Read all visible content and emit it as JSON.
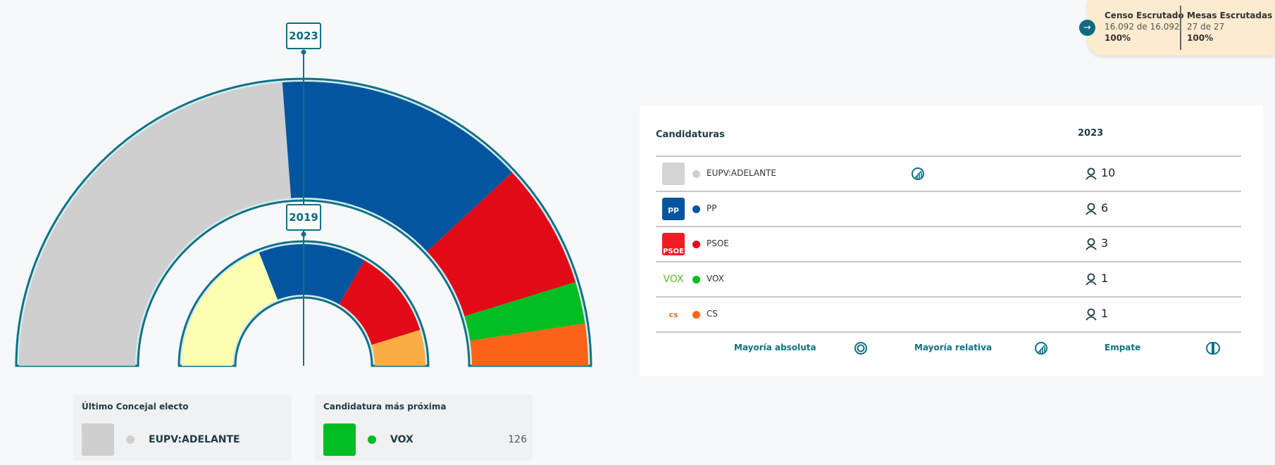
{
  "chart_data": {
    "type": "hemicycle",
    "rings": [
      {
        "year": "2023",
        "seats": [
          {
            "party": "EUPV:ADELANTE",
            "value": 10,
            "color": "#cfcfcf"
          },
          {
            "party": "PP",
            "value": 6,
            "color": "#0455a0"
          },
          {
            "party": "PSOE",
            "value": 3,
            "color": "#e20a17"
          },
          {
            "party": "VOX",
            "value": 1,
            "color": "#00bd21"
          },
          {
            "party": "CS",
            "value": 1,
            "color": "#fb6319"
          }
        ]
      },
      {
        "year": "2019",
        "seats": [
          {
            "value": 8,
            "color": "#fefeb0"
          },
          {
            "value": 6,
            "color": "#0455a0"
          },
          {
            "value": 5,
            "color": "#e20a17"
          },
          {
            "value": 2,
            "color": "#fdad46"
          }
        ]
      }
    ]
  },
  "escrutinio": {
    "censo_label": "Censo Escrutado",
    "censo_value": "16.092 de 16.092",
    "censo_pct": "100%",
    "mesas_label": "Mesas Escrutadas",
    "mesas_value": "27 de 27",
    "mesas_pct": "100%"
  },
  "table": {
    "col_candidaturas": "Candidaturas",
    "col_year": "2023",
    "rows": [
      {
        "name": "EUPV:ADELANTE",
        "color": "#cfcfcf",
        "seats": "10",
        "logo": "",
        "majority": "relativa"
      },
      {
        "name": "PP",
        "color": "#0455a0",
        "seats": "6",
        "logo": "pp"
      },
      {
        "name": "PSOE",
        "color": "#e20a17",
        "seats": "3",
        "logo": "PSOE"
      },
      {
        "name": "VOX",
        "color": "#00bd21",
        "seats": "1",
        "logo": "VOX"
      },
      {
        "name": "CS",
        "color": "#fb6319",
        "seats": "1",
        "logo": "cs"
      }
    ],
    "legend": {
      "absoluta": "Mayoría absoluta",
      "relativa": "Mayoría relativa",
      "empate": "Empate"
    }
  },
  "ultimo": {
    "title": "Último Concejal electo",
    "party": "EUPV:ADELANTE",
    "color": "#cfcfcf"
  },
  "proxima": {
    "title": "Candidatura más próxima",
    "party": "VOX",
    "color": "#00bd21",
    "votes": "126"
  }
}
